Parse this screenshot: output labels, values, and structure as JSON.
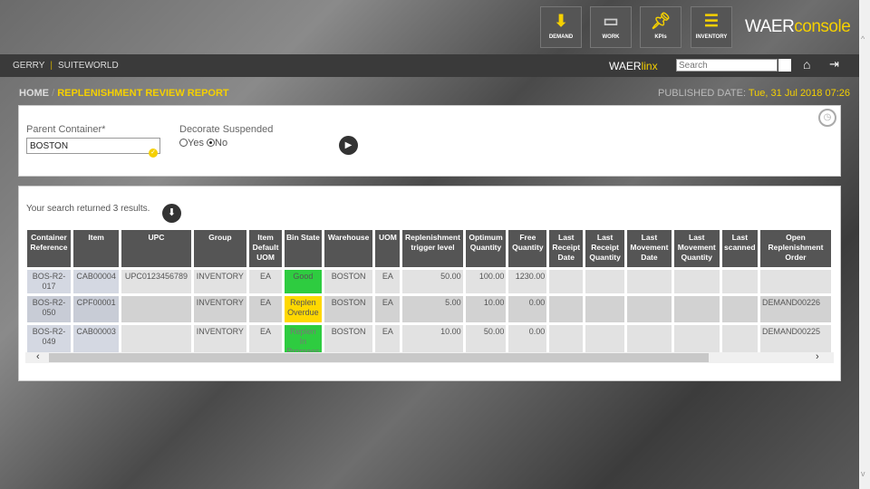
{
  "header": {
    "tiles": [
      {
        "label": "DEMAND",
        "icon": "demand-icon"
      },
      {
        "label": "WORK",
        "icon": "laptop-icon"
      },
      {
        "label": "KPIs",
        "icon": "pushpin-icon"
      },
      {
        "label": "INVENTORY",
        "icon": "clipboard-icon"
      }
    ],
    "logo_main": "WAER",
    "logo_accent": "console"
  },
  "nav": {
    "user": "GERRY",
    "site": "SUITEWORLD",
    "linx_main": "WAER",
    "linx_accent": "linx",
    "search_placeholder": "Search"
  },
  "breadcrumb": {
    "home": "HOME",
    "sep": "/",
    "current": "REPLENISHMENT REVIEW REPORT"
  },
  "published": {
    "label": "PUBLISHED DATE:",
    "value": "Tue, 31 Jul 2018 07:26"
  },
  "form": {
    "parent_label": "Parent Container*",
    "parent_value": "BOSTON",
    "decorate_label": "Decorate Suspended",
    "yes": "Yes",
    "no": "No",
    "selected": "No"
  },
  "results": {
    "message": "Your search returned 3 results.",
    "columns": [
      "Container Reference",
      "Item",
      "UPC",
      "Group",
      "Item Default UOM",
      "Bin State",
      "Warehouse",
      "UOM",
      "Replenishment trigger level",
      "Optimum Quantity",
      "Free Quantity",
      "Last Receipt Date",
      "Last Receipt Quantity",
      "Last Movement Date",
      "Last Movement Quantity",
      "Last scanned",
      "Open Replenishment Order"
    ],
    "rows": [
      [
        "BOS-R2-017",
        "CAB00004",
        "UPC0123456789",
        "INVENTORY",
        "EA",
        "Good",
        "BOSTON",
        "EA",
        "50.00",
        "100.00",
        "1230.00",
        "",
        "",
        "",
        "",
        "",
        ""
      ],
      [
        "BOS-R2-050",
        "CPF00001",
        "",
        "INVENTORY",
        "EA",
        "Replen Overdue",
        "BOSTON",
        "EA",
        "5.00",
        "10.00",
        "0.00",
        "",
        "",
        "",
        "",
        "",
        "DEMAND00226"
      ],
      [
        "BOS-R2-049",
        "CAB00003",
        "",
        "INVENTORY",
        "EA",
        "Replen In Progress",
        "BOSTON",
        "EA",
        "10.00",
        "50.00",
        "0.00",
        "",
        "",
        "",
        "",
        "",
        "DEMAND00225"
      ]
    ]
  },
  "colors": {
    "accent": "#f5d000",
    "good": "#2ecc40",
    "overdue": "#ffd800"
  }
}
